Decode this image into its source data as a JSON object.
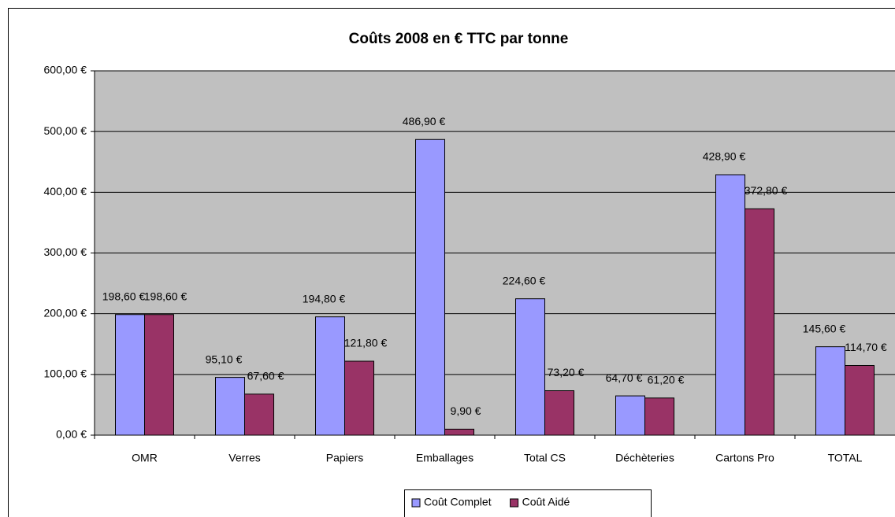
{
  "chart_data": {
    "type": "bar",
    "title": "Coûts 2008 en € TTC par tonne",
    "categories": [
      "OMR",
      "Verres",
      "Papiers",
      "Emballages",
      "Total CS",
      "Déchèteries",
      "Cartons Pro",
      "TOTAL"
    ],
    "series": [
      {
        "name": "Coût Complet",
        "color": "#9999ff",
        "values": [
          198.6,
          95.1,
          194.8,
          486.9,
          224.6,
          64.7,
          428.9,
          145.6
        ],
        "value_labels": [
          "198,60 €",
          "95,10 €",
          "194,80 €",
          "486,90 €",
          "224,60 €",
          "64,70 €",
          "428,90 €",
          "145,60 €"
        ]
      },
      {
        "name": "Coût Aidé",
        "color": "#993366",
        "values": [
          198.6,
          67.6,
          121.8,
          9.9,
          73.2,
          61.2,
          372.8,
          114.7
        ],
        "value_labels": [
          "198,60 €",
          "67,60 €",
          "121,80 €",
          "9,90 €",
          "73,20 €",
          "61,20 €",
          "372,80 €",
          "114,70 €"
        ]
      }
    ],
    "ylim": [
      0,
      600
    ],
    "yticks": [
      {
        "value": 0,
        "label": "0,00 €"
      },
      {
        "value": 100,
        "label": "100,00 €"
      },
      {
        "value": 200,
        "label": "200,00 €"
      },
      {
        "value": 300,
        "label": "300,00 €"
      },
      {
        "value": 400,
        "label": "400,00 €"
      },
      {
        "value": 500,
        "label": "500,00 €"
      },
      {
        "value": 600,
        "label": "600,00 €"
      }
    ],
    "grid": true,
    "legend": "bottom",
    "plot_background": "#c0c0c0"
  }
}
